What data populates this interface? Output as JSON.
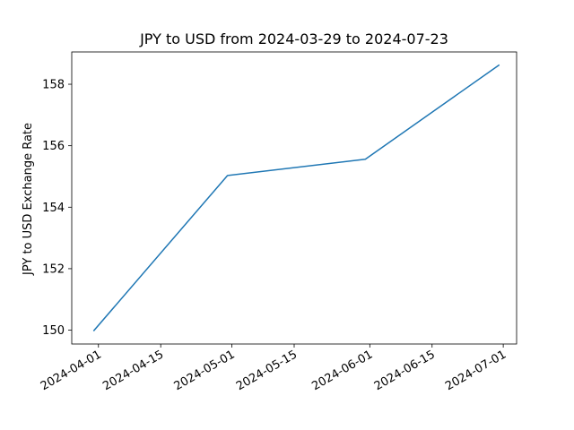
{
  "chart_data": {
    "type": "line",
    "title": "JPY to USD from 2024-03-29 to 2024-07-23",
    "xlabel": "",
    "ylabel": "JPY to USD Exchange Rate",
    "x": [
      "2024-03-31",
      "2024-04-30",
      "2024-05-31",
      "2024-06-30"
    ],
    "series": [
      {
        "values": [
          149.99,
          155.03,
          155.56,
          158.62
        ],
        "color": "#1f77b4"
      }
    ],
    "xlim": [
      "2024-03-26",
      "2024-07-04"
    ],
    "ylim": [
      149.55,
      159.05
    ],
    "xticks": [
      "2024-04-01",
      "2024-04-15",
      "2024-05-01",
      "2024-05-15",
      "2024-06-01",
      "2024-06-15",
      "2024-07-01"
    ],
    "yticks": [
      150,
      152,
      154,
      156,
      158
    ],
    "grid": false,
    "legend": false
  }
}
